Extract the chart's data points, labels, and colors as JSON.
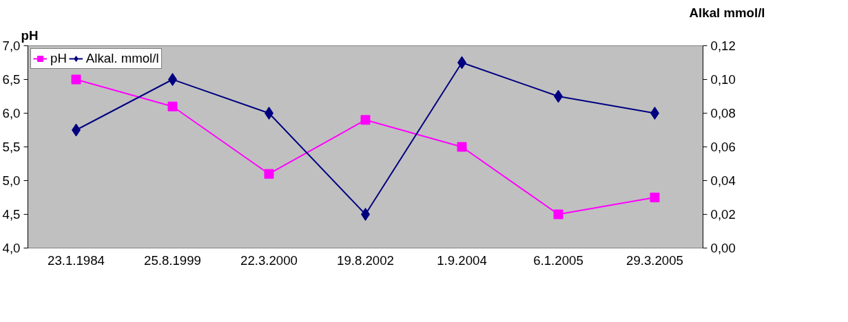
{
  "chart_data": {
    "type": "line",
    "categories": [
      "23.1.1984",
      "25.8.1999",
      "22.3.2000",
      "19.8.2002",
      "1.9.2004",
      "6.1.2005",
      "29.3.2005"
    ],
    "ylabel": "pH",
    "y2label": "Alkal mmol/l",
    "ylim": [
      4.0,
      7.0
    ],
    "yticks": [
      {
        "value": 4.0,
        "label": "4,0"
      },
      {
        "value": 4.5,
        "label": "4,5"
      },
      {
        "value": 5.0,
        "label": "5,0"
      },
      {
        "value": 5.5,
        "label": "5,5"
      },
      {
        "value": 6.0,
        "label": "6,0"
      },
      {
        "value": 6.5,
        "label": "6,5"
      },
      {
        "value": 7.0,
        "label": "7,0"
      }
    ],
    "y2lim": [
      0.0,
      0.12
    ],
    "y2ticks": [
      {
        "value": 0.0,
        "label": "0,00"
      },
      {
        "value": 0.02,
        "label": "0,02"
      },
      {
        "value": 0.04,
        "label": "0,04"
      },
      {
        "value": 0.06,
        "label": "0,06"
      },
      {
        "value": 0.08,
        "label": "0,08"
      },
      {
        "value": 0.1,
        "label": "0,10"
      },
      {
        "value": 0.12,
        "label": "0,12"
      }
    ],
    "grid": false,
    "legend": "top left",
    "series": [
      {
        "name": "pH",
        "color": "#ff00ff",
        "marker": "square",
        "values": [
          6.5,
          6.1,
          5.1,
          5.9,
          5.5,
          4.5,
          4.75
        ]
      },
      {
        "name": "Alkal. mmol/l",
        "color": "#000080",
        "marker": "diamond",
        "axis": "y2",
        "values": [
          0.07,
          0.1,
          0.08,
          0.02,
          0.11,
          0.09,
          0.08
        ]
      }
    ]
  }
}
